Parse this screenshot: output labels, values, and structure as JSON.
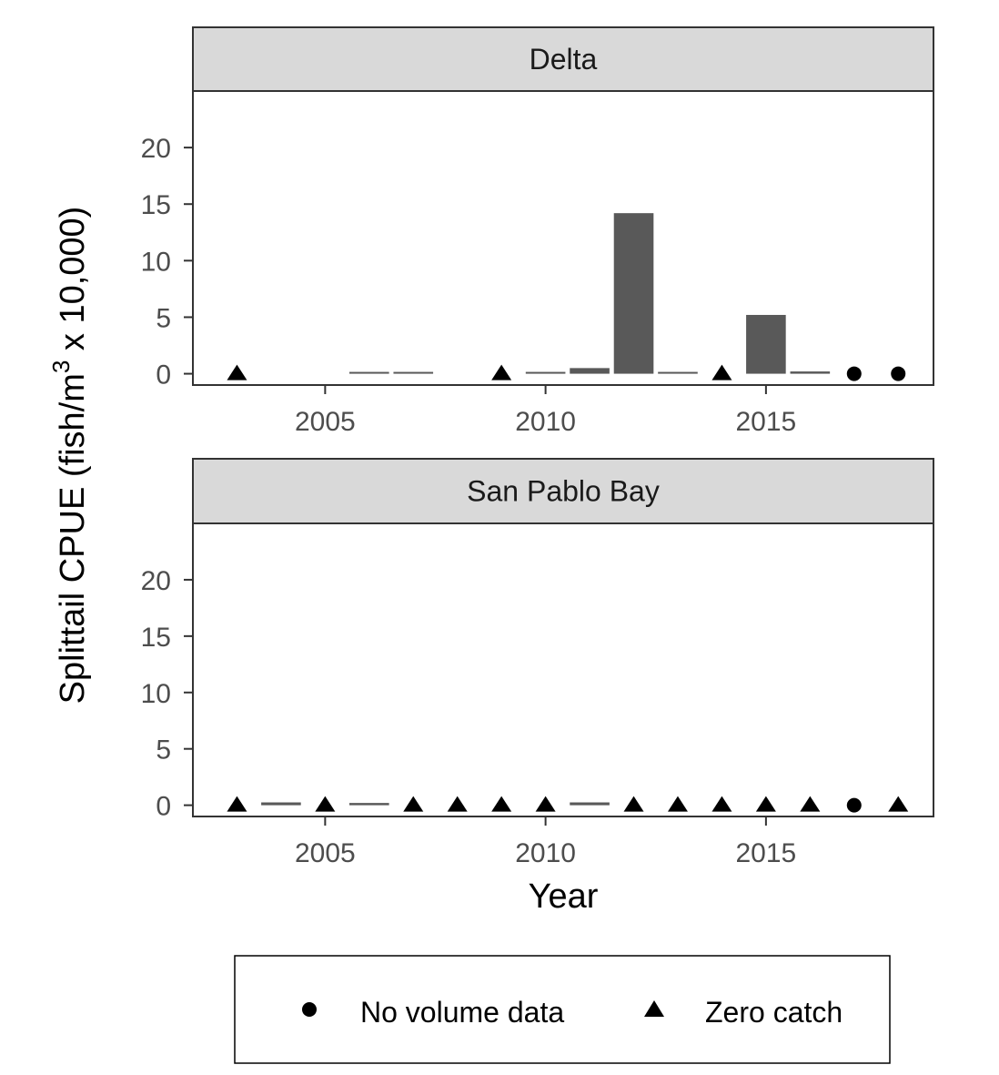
{
  "chart_data": {
    "type": "bar",
    "xlabel": "Year",
    "ylabel": "Splittail CPUE (fish/m³ x 10,000)",
    "ylabel_parts": {
      "before": "Splittail CPUE (fish/m",
      "sup": "3",
      "after": " x 10,000)"
    },
    "xlim": [
      2002,
      2018.8
    ],
    "ylim": [
      -1,
      25
    ],
    "x_ticks": [
      2005,
      2010,
      2015
    ],
    "y_ticks": [
      0,
      5,
      10,
      15,
      20
    ],
    "grid": false,
    "legend_position": "bottom",
    "colors": {
      "bar": "#595959",
      "strip_fill": "#d9d9d9",
      "panel_border": "#333333",
      "marker": "#000000",
      "tick": "#333333"
    },
    "legend": [
      {
        "label": "No volume data",
        "shape": "circle"
      },
      {
        "label": "Zero catch",
        "shape": "triangle"
      }
    ],
    "panels": [
      {
        "title": "Delta",
        "bars": [
          {
            "year": 2006,
            "value": 0.03
          },
          {
            "year": 2007,
            "value": 0.03
          },
          {
            "year": 2010,
            "value": 0.03
          },
          {
            "year": 2011,
            "value": 0.5
          },
          {
            "year": 2012,
            "value": 14.2
          },
          {
            "year": 2013,
            "value": 0.03
          },
          {
            "year": 2015,
            "value": 5.2
          },
          {
            "year": 2016,
            "value": 0.2
          }
        ],
        "markers": [
          {
            "year": 2003,
            "shape": "triangle"
          },
          {
            "year": 2009,
            "shape": "triangle"
          },
          {
            "year": 2014,
            "shape": "triangle"
          },
          {
            "year": 2017,
            "shape": "circle"
          },
          {
            "year": 2018,
            "shape": "circle"
          }
        ]
      },
      {
        "title": "San Pablo Bay",
        "bars": [
          {
            "year": 2004,
            "value": 0.25
          },
          {
            "year": 2006,
            "value": 0.2
          },
          {
            "year": 2011,
            "value": 0.25
          }
        ],
        "markers": [
          {
            "year": 2003,
            "shape": "triangle"
          },
          {
            "year": 2005,
            "shape": "triangle"
          },
          {
            "year": 2007,
            "shape": "triangle"
          },
          {
            "year": 2008,
            "shape": "triangle"
          },
          {
            "year": 2009,
            "shape": "triangle"
          },
          {
            "year": 2010,
            "shape": "triangle"
          },
          {
            "year": 2012,
            "shape": "triangle"
          },
          {
            "year": 2013,
            "shape": "triangle"
          },
          {
            "year": 2014,
            "shape": "triangle"
          },
          {
            "year": 2015,
            "shape": "triangle"
          },
          {
            "year": 2016,
            "shape": "triangle"
          },
          {
            "year": 2017,
            "shape": "circle"
          },
          {
            "year": 2018,
            "shape": "triangle"
          }
        ]
      }
    ]
  }
}
